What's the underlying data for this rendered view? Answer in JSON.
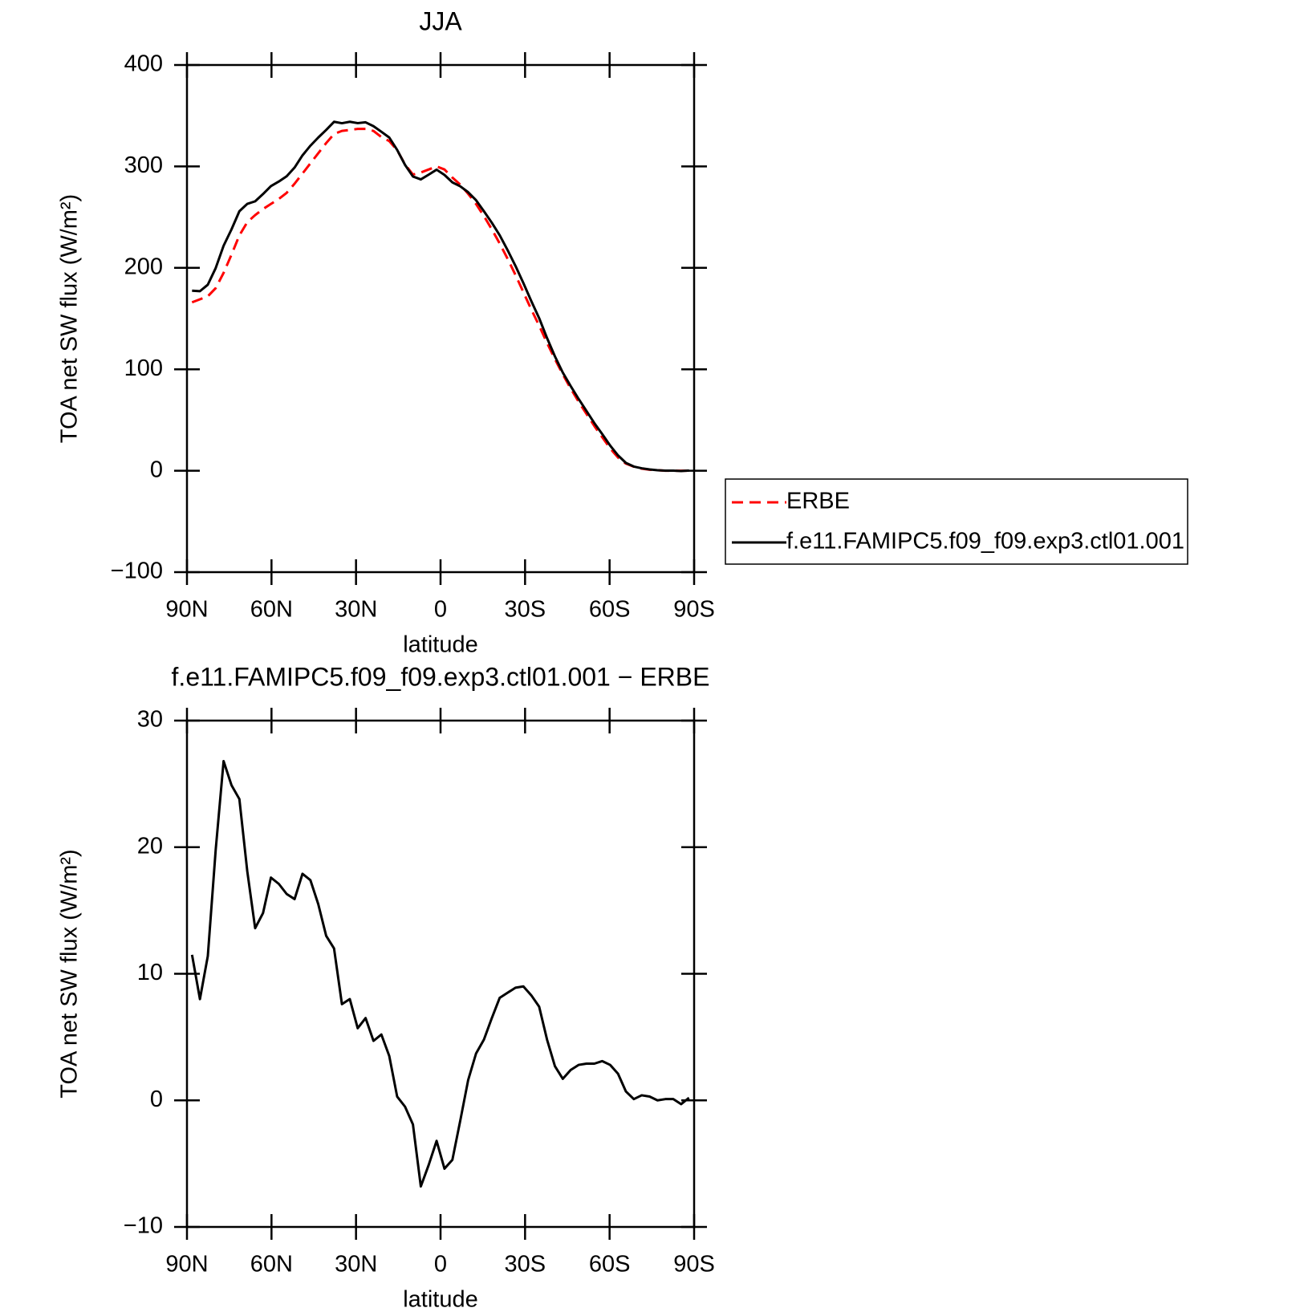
{
  "chart_data": [
    {
      "type": "line",
      "title": "JJA",
      "xlabel": "latitude",
      "ylabel": "TOA net SW flux (W/m²)",
      "x": [
        88.2,
        85.4,
        82.6,
        79.8,
        77,
        74.2,
        71.4,
        68.6,
        65.8,
        63,
        60.2,
        57.4,
        54.6,
        51.8,
        49,
        46.2,
        43.4,
        40.6,
        37.8,
        35,
        32.2,
        29.4,
        26.6,
        23.8,
        21,
        18.2,
        15.4,
        12.6,
        9.8,
        7,
        4.2,
        1.4,
        -1.4,
        -4.2,
        -7,
        -9.8,
        -12.6,
        -15.4,
        -18.2,
        -21,
        -23.8,
        -26.6,
        -29.4,
        -32.2,
        -35,
        -37.8,
        -40.6,
        -43.4,
        -46.2,
        -49,
        -51.8,
        -54.6,
        -57.4,
        -60.2,
        -63,
        -65.8,
        -68.6,
        -71.4,
        -74.2,
        -77,
        -79.8,
        -82.6,
        -85.4,
        -88.2
      ],
      "xlim": [
        90,
        -90
      ],
      "xticks": [
        {
          "value": 90,
          "label": "90N"
        },
        {
          "value": 60,
          "label": "60N"
        },
        {
          "value": 30,
          "label": "30N"
        },
        0,
        {
          "value": -30,
          "label": "30S"
        },
        {
          "value": -60,
          "label": "60S"
        },
        {
          "value": -90,
          "label": "90S"
        }
      ],
      "ylim": [
        -100,
        400
      ],
      "yticks": [
        {
          "value": -100,
          "label": "−100"
        },
        0,
        100,
        200,
        300,
        400
      ],
      "legend": "right",
      "series": [
        {
          "name": "ERBE",
          "color": "#ff0000",
          "style": "dashed",
          "values": [
            166,
            169,
            172,
            180,
            195,
            213,
            232,
            245,
            252,
            258,
            263,
            268,
            274,
            283,
            293,
            303,
            313,
            323,
            332,
            335,
            336,
            337,
            337,
            335,
            329,
            325,
            316,
            302,
            292,
            294,
            297,
            300,
            297,
            289,
            282,
            273,
            263,
            251,
            238,
            224,
            209,
            193,
            176,
            159,
            143,
            126,
            110,
            95,
            81,
            68,
            56,
            44,
            33,
            22,
            13,
            7,
            4,
            2,
            1,
            0.5,
            0,
            0,
            0,
            0
          ]
        },
        {
          "name": "f.e11.FAMIPC5.f09_f09.exp3.ctl01.001",
          "color": "#000000",
          "style": "solid",
          "values": [
            177.5,
            177,
            183.4,
            199.8,
            221.8,
            237.9,
            255.8,
            263.1,
            265.6,
            272.8,
            280.6,
            285.1,
            290.3,
            298.9,
            310.9,
            320.4,
            328.5,
            336,
            344,
            342.6,
            344,
            342.7,
            343.5,
            339.7,
            334.2,
            328.5,
            316.3,
            301.5,
            290.1,
            287.2,
            291.9,
            296.8,
            291.6,
            284.3,
            280.4,
            274.6,
            266.7,
            255.8,
            244.5,
            232.1,
            217.5,
            201.9,
            185,
            167.3,
            150.4,
            130.8,
            112.7,
            96.7,
            83.4,
            70.8,
            58.9,
            46.9,
            36.1,
            24.8,
            15.1,
            7.7,
            4.1,
            2.4,
            1.3,
            0.5,
            0.1,
            0.1,
            -0.3,
            0.2
          ]
        }
      ]
    },
    {
      "type": "line",
      "title": "f.e11.FAMIPC5.f09_f09.exp3.ctl01.001 − ERBE",
      "xlabel": "latitude",
      "ylabel": "TOA net SW flux (W/m²)",
      "x": [
        88.2,
        85.4,
        82.6,
        79.8,
        77,
        74.2,
        71.4,
        68.6,
        65.8,
        63,
        60.2,
        57.4,
        54.6,
        51.8,
        49,
        46.2,
        43.4,
        40.6,
        37.8,
        35,
        32.2,
        29.4,
        26.6,
        23.8,
        21,
        18.2,
        15.4,
        12.6,
        9.8,
        7,
        4.2,
        1.4,
        -1.4,
        -4.2,
        -7,
        -9.8,
        -12.6,
        -15.4,
        -18.2,
        -21,
        -23.8,
        -26.6,
        -29.4,
        -32.2,
        -35,
        -37.8,
        -40.6,
        -43.4,
        -46.2,
        -49,
        -51.8,
        -54.6,
        -57.4,
        -60.2,
        -63,
        -65.8,
        -68.6,
        -71.4,
        -74.2,
        -77,
        -79.8,
        -82.6,
        -85.4,
        -88.2
      ],
      "xlim": [
        90,
        -90
      ],
      "xticks": [
        {
          "value": 90,
          "label": "90N"
        },
        {
          "value": 60,
          "label": "60N"
        },
        {
          "value": 30,
          "label": "30N"
        },
        0,
        {
          "value": -30,
          "label": "30S"
        },
        {
          "value": -60,
          "label": "60S"
        },
        {
          "value": -90,
          "label": "90S"
        }
      ],
      "ylim": [
        -10,
        30
      ],
      "yticks": [
        {
          "value": -10,
          "label": "−10"
        },
        0,
        10,
        20,
        30
      ],
      "series": [
        {
          "color": "#000000",
          "style": "solid",
          "values": [
            11.5,
            8.0,
            11.4,
            19.8,
            26.8,
            24.9,
            23.8,
            18.1,
            13.6,
            14.8,
            17.6,
            17.1,
            16.3,
            15.9,
            17.9,
            17.4,
            15.5,
            13.0,
            12.0,
            7.6,
            8.0,
            5.7,
            6.5,
            4.7,
            5.2,
            3.5,
            0.3,
            -0.5,
            -1.9,
            -6.8,
            -5.1,
            -3.2,
            -5.4,
            -4.7,
            -1.6,
            1.6,
            3.7,
            4.8,
            6.5,
            8.1,
            8.5,
            8.9,
            9.0,
            8.3,
            7.4,
            4.8,
            2.7,
            1.7,
            2.4,
            2.8,
            2.9,
            2.9,
            3.1,
            2.8,
            2.1,
            0.7,
            0.1,
            0.4,
            0.3,
            0.0,
            0.1,
            0.1,
            -0.3,
            0.2
          ]
        }
      ]
    }
  ]
}
